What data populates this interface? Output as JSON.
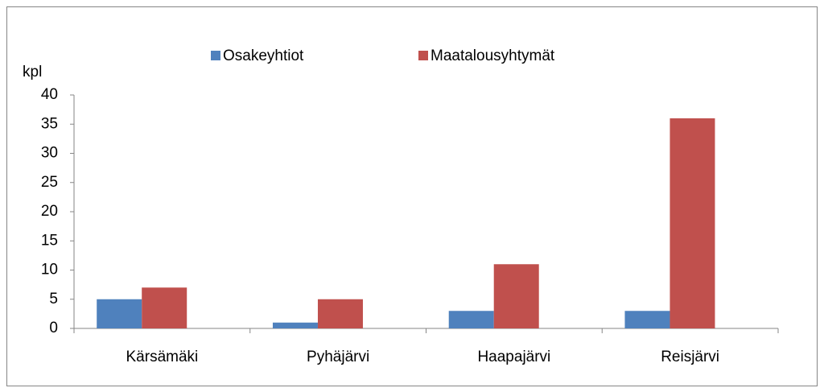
{
  "chart_data": {
    "type": "bar",
    "y_label": "kpl",
    "categories": [
      "Kärsämäki",
      "Pyhäjärvi",
      "Haapajärvi",
      "Reisjärvi"
    ],
    "series": [
      {
        "name": "Osakeyhtiot",
        "color": "#4f81bd",
        "values": [
          5,
          1,
          3,
          3
        ]
      },
      {
        "name": "Maatalousyhtymät",
        "color": "#c0504d",
        "values": [
          7,
          5,
          11,
          36
        ]
      }
    ],
    "ylim": [
      0,
      40
    ],
    "yticks": [
      0,
      5,
      10,
      15,
      20,
      25,
      30,
      35,
      40
    ]
  }
}
